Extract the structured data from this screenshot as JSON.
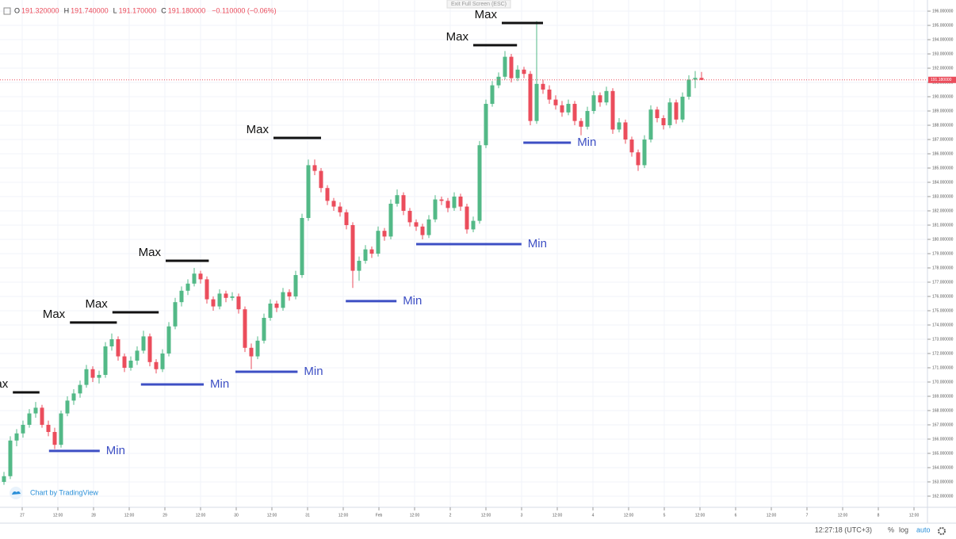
{
  "chart_data": {
    "type": "candlestick",
    "legend": [
      {
        "key": "O",
        "value": "191.320000"
      },
      {
        "key": "H",
        "value": "191.740000"
      },
      {
        "key": "L",
        "value": "191.170000"
      },
      {
        "key": "C",
        "value": "191.180000"
      }
    ],
    "change": "−0.110000 (−0.06%)",
    "up_color": "#53b987",
    "down_color": "#eb4d5c",
    "candles": [
      [
        163.0,
        163.7,
        162.8,
        163.4
      ],
      [
        163.4,
        166.2,
        163.2,
        165.9
      ],
      [
        165.9,
        166.7,
        165.5,
        166.4
      ],
      [
        166.4,
        167.3,
        166.1,
        167.0
      ],
      [
        167.0,
        168.1,
        166.8,
        167.8
      ],
      [
        167.8,
        168.6,
        167.5,
        168.2
      ],
      [
        168.2,
        168.4,
        166.8,
        167.0
      ],
      [
        167.0,
        167.3,
        166.2,
        166.5
      ],
      [
        166.5,
        166.8,
        165.3,
        165.6
      ],
      [
        165.6,
        168.0,
        165.4,
        167.8
      ],
      [
        167.8,
        169.0,
        167.6,
        168.7
      ],
      [
        168.7,
        169.5,
        168.4,
        169.2
      ],
      [
        169.2,
        170.1,
        168.9,
        169.8
      ],
      [
        169.8,
        171.2,
        169.6,
        170.9
      ],
      [
        170.9,
        171.1,
        170.0,
        170.3
      ],
      [
        170.3,
        170.8,
        169.9,
        170.5
      ],
      [
        170.5,
        172.8,
        170.3,
        172.5
      ],
      [
        172.5,
        173.4,
        172.2,
        173.0
      ],
      [
        173.0,
        173.2,
        171.5,
        171.8
      ],
      [
        171.8,
        172.0,
        170.7,
        171.0
      ],
      [
        171.0,
        171.8,
        170.8,
        171.5
      ],
      [
        171.5,
        172.5,
        171.2,
        172.2
      ],
      [
        172.2,
        173.6,
        172.0,
        173.2
      ],
      [
        173.2,
        173.4,
        171.1,
        171.4
      ],
      [
        171.4,
        171.6,
        170.6,
        170.9
      ],
      [
        170.9,
        172.3,
        170.7,
        172.0
      ],
      [
        172.0,
        174.2,
        171.8,
        173.9
      ],
      [
        173.9,
        175.9,
        173.7,
        175.6
      ],
      [
        175.6,
        176.7,
        175.3,
        176.4
      ],
      [
        176.4,
        177.2,
        176.1,
        176.9
      ],
      [
        176.9,
        178.0,
        176.7,
        177.6
      ],
      [
        177.6,
        177.8,
        176.9,
        177.2
      ],
      [
        177.2,
        177.4,
        175.5,
        175.8
      ],
      [
        175.8,
        176.0,
        175.0,
        175.3
      ],
      [
        175.3,
        176.5,
        175.1,
        176.2
      ],
      [
        176.2,
        176.4,
        175.6,
        175.9
      ],
      [
        175.9,
        176.3,
        175.7,
        176.0
      ],
      [
        176.0,
        176.2,
        174.8,
        175.1
      ],
      [
        175.1,
        175.3,
        172.1,
        172.4
      ],
      [
        172.4,
        172.7,
        170.9,
        171.8
      ],
      [
        171.8,
        173.2,
        171.6,
        172.9
      ],
      [
        172.9,
        174.8,
        172.7,
        174.5
      ],
      [
        174.5,
        175.8,
        174.3,
        175.5
      ],
      [
        175.5,
        175.7,
        174.9,
        175.2
      ],
      [
        175.2,
        176.6,
        175.0,
        176.3
      ],
      [
        176.3,
        176.5,
        175.7,
        176.0
      ],
      [
        176.0,
        177.8,
        175.8,
        177.5
      ],
      [
        177.5,
        181.8,
        177.3,
        181.5
      ],
      [
        181.5,
        185.6,
        181.3,
        185.2
      ],
      [
        185.2,
        185.6,
        184.5,
        184.8
      ],
      [
        184.8,
        185.0,
        183.3,
        183.6
      ],
      [
        183.6,
        183.8,
        182.4,
        182.7
      ],
      [
        182.7,
        182.9,
        182.0,
        182.3
      ],
      [
        182.3,
        182.6,
        181.6,
        181.9
      ],
      [
        181.9,
        182.1,
        180.7,
        181.0
      ],
      [
        181.0,
        181.2,
        176.6,
        177.8
      ],
      [
        177.8,
        178.8,
        177.1,
        178.5
      ],
      [
        178.5,
        179.6,
        178.3,
        179.3
      ],
      [
        179.3,
        179.5,
        178.7,
        179.0
      ],
      [
        179.0,
        180.9,
        178.8,
        180.6
      ],
      [
        180.6,
        180.8,
        179.9,
        180.2
      ],
      [
        180.2,
        182.8,
        180.0,
        182.5
      ],
      [
        182.5,
        183.5,
        182.3,
        183.1
      ],
      [
        183.1,
        183.3,
        181.7,
        182.0
      ],
      [
        182.0,
        182.2,
        180.9,
        181.2
      ],
      [
        181.2,
        181.4,
        180.6,
        180.9
      ],
      [
        180.9,
        181.1,
        180.0,
        180.3
      ],
      [
        180.3,
        181.7,
        180.1,
        181.4
      ],
      [
        181.4,
        183.1,
        181.2,
        182.8
      ],
      [
        182.8,
        183.0,
        182.4,
        182.7
      ],
      [
        182.7,
        182.9,
        181.9,
        182.2
      ],
      [
        182.2,
        183.3,
        182.0,
        183.0
      ],
      [
        183.0,
        183.2,
        182.0,
        182.3
      ],
      [
        182.3,
        182.5,
        180.4,
        180.7
      ],
      [
        180.7,
        181.6,
        180.5,
        181.3
      ],
      [
        181.3,
        186.9,
        181.1,
        186.6
      ],
      [
        186.6,
        189.8,
        186.4,
        189.5
      ],
      [
        189.5,
        191.1,
        189.3,
        190.8
      ],
      [
        190.8,
        191.7,
        190.6,
        191.4
      ],
      [
        191.4,
        193.2,
        191.2,
        192.8
      ],
      [
        192.8,
        193.0,
        191.0,
        191.3
      ],
      [
        191.3,
        192.2,
        191.1,
        191.9
      ],
      [
        191.9,
        192.1,
        191.3,
        191.6
      ],
      [
        191.6,
        191.8,
        188.0,
        188.3
      ],
      [
        188.3,
        195.3,
        188.1,
        190.9
      ],
      [
        190.9,
        191.2,
        190.2,
        190.5
      ],
      [
        190.5,
        190.8,
        189.5,
        189.8
      ],
      [
        189.8,
        190.1,
        189.1,
        189.4
      ],
      [
        189.4,
        189.7,
        188.6,
        188.9
      ],
      [
        188.9,
        189.8,
        188.7,
        189.5
      ],
      [
        189.5,
        189.7,
        188.0,
        188.3
      ],
      [
        188.3,
        188.5,
        187.3,
        187.9
      ],
      [
        187.9,
        189.3,
        187.7,
        189.0
      ],
      [
        189.0,
        190.4,
        188.8,
        190.1
      ],
      [
        190.1,
        190.3,
        189.3,
        189.6
      ],
      [
        189.6,
        190.7,
        189.4,
        190.4
      ],
      [
        190.4,
        190.6,
        187.4,
        187.7
      ],
      [
        187.7,
        188.5,
        187.5,
        188.2
      ],
      [
        188.2,
        188.4,
        186.7,
        187.0
      ],
      [
        187.0,
        187.2,
        185.8,
        186.1
      ],
      [
        186.1,
        186.3,
        184.8,
        185.2
      ],
      [
        185.2,
        187.3,
        185.0,
        187.0
      ],
      [
        187.0,
        189.4,
        186.8,
        189.1
      ],
      [
        189.1,
        189.3,
        188.2,
        188.5
      ],
      [
        188.5,
        188.7,
        187.7,
        188.0
      ],
      [
        188.0,
        189.9,
        187.8,
        189.6
      ],
      [
        189.6,
        189.8,
        188.1,
        188.4
      ],
      [
        188.4,
        190.3,
        188.2,
        190.0
      ],
      [
        190.0,
        191.5,
        189.8,
        191.2
      ],
      [
        191.2,
        191.8,
        190.6,
        191.32
      ],
      [
        191.32,
        191.74,
        191.17,
        191.18
      ]
    ],
    "xlim": [
      -0.625,
      145.625
    ],
    "xticks": [
      {
        "value": 2.875,
        "label": "27"
      },
      {
        "value": 8.5,
        "label": "12:00"
      },
      {
        "value": 14.125,
        "label": "28"
      },
      {
        "value": 19.75,
        "label": "12:00"
      },
      {
        "value": 25.375,
        "label": "29"
      },
      {
        "value": 31,
        "label": "12:00"
      },
      {
        "value": 36.625,
        "label": "30"
      },
      {
        "value": 42.25,
        "label": "12:00"
      },
      {
        "value": 47.875,
        "label": "31"
      },
      {
        "value": 53.5,
        "label": "12:00"
      },
      {
        "value": 59.125,
        "label": "Feb"
      },
      {
        "value": 64.75,
        "label": "12:00"
      },
      {
        "value": 70.375,
        "label": "2"
      },
      {
        "value": 76,
        "label": "12:00"
      },
      {
        "value": 81.625,
        "label": "3"
      },
      {
        "value": 87.25,
        "label": "12:00"
      },
      {
        "value": 92.875,
        "label": "4"
      },
      {
        "value": 98.5,
        "label": "12:00"
      },
      {
        "value": 104.125,
        "label": "5"
      },
      {
        "value": 109.75,
        "label": "12:00"
      },
      {
        "value": 115.375,
        "label": "6"
      },
      {
        "value": 121,
        "label": "12:00"
      },
      {
        "value": 126.625,
        "label": "7"
      },
      {
        "value": 132.25,
        "label": "12:00"
      },
      {
        "value": 137.875,
        "label": "8"
      },
      {
        "value": 143.5,
        "label": "12:00"
      }
    ],
    "ylim": [
      161.22,
      196.78
    ],
    "yticks": [
      {
        "value": 162,
        "label": "162.000000"
      },
      {
        "value": 163,
        "label": "163.000000"
      },
      {
        "value": 164,
        "label": "164.000000"
      },
      {
        "value": 165,
        "label": "165.000000"
      },
      {
        "value": 166,
        "label": "166.000000"
      },
      {
        "value": 167,
        "label": "167.000000"
      },
      {
        "value": 168,
        "label": "168.000000"
      },
      {
        "value": 169,
        "label": "169.000000"
      },
      {
        "value": 170,
        "label": "170.000000"
      },
      {
        "value": 171,
        "label": "171.000000"
      },
      {
        "value": 172,
        "label": "172.000000"
      },
      {
        "value": 173,
        "label": "173.000000"
      },
      {
        "value": 174,
        "label": "174.000000"
      },
      {
        "value": 175,
        "label": "175.000000"
      },
      {
        "value": 176,
        "label": "176.000000"
      },
      {
        "value": 177,
        "label": "177.000000"
      },
      {
        "value": 178,
        "label": "178.000000"
      },
      {
        "value": 179,
        "label": "179.000000"
      },
      {
        "value": 180,
        "label": "180.000000"
      },
      {
        "value": 181,
        "label": "181.000000"
      },
      {
        "value": 182,
        "label": "182.000000"
      },
      {
        "value": 183,
        "label": "183.000000"
      },
      {
        "value": 184,
        "label": "184.000000"
      },
      {
        "value": 185,
        "label": "185.000000"
      },
      {
        "value": 186,
        "label": "186.000000"
      },
      {
        "value": 187,
        "label": "187.000000"
      },
      {
        "value": 188,
        "label": "188.000000"
      },
      {
        "value": 189,
        "label": "189.000000"
      },
      {
        "value": 190,
        "label": "190.000000"
      },
      {
        "value": 191,
        "label": "191.000000"
      },
      {
        "value": 192,
        "label": "192.000000"
      },
      {
        "value": 193,
        "label": "193.000000"
      },
      {
        "value": 194,
        "label": "194.000000"
      },
      {
        "value": 195,
        "label": "195.000000"
      },
      {
        "value": 196,
        "label": "196.000000"
      }
    ],
    "grid": true,
    "last_price": {
      "value": 191.18,
      "label": "191.180000"
    },
    "annotations": [
      {
        "label": "Max",
        "price": 169.28,
        "start": 1.4,
        "end": 5.6,
        "color": "#111111"
      },
      {
        "label": "Max",
        "price": 174.17,
        "start": 10.4,
        "end": 17.8,
        "color": "#111111"
      },
      {
        "label": "Max",
        "price": 174.89,
        "start": 17.1,
        "end": 24.4,
        "color": "#111111"
      },
      {
        "label": "Max",
        "price": 178.5,
        "start": 25.5,
        "end": 32.3,
        "color": "#111111"
      },
      {
        "label": "Max",
        "price": 187.11,
        "start": 42.5,
        "end": 50,
        "color": "#111111"
      },
      {
        "label": "Max",
        "price": 193.61,
        "start": 74,
        "end": 80.9,
        "color": "#111111"
      },
      {
        "label": "Max",
        "price": 195.17,
        "start": 78.5,
        "end": 85,
        "color": "#111111"
      },
      {
        "label": "Min",
        "price": 165.17,
        "start": 7.1,
        "end": 15.1,
        "color": "#3d4fc4"
      },
      {
        "label": "Min",
        "price": 169.83,
        "start": 21.6,
        "end": 31.5,
        "color": "#3d4fc4"
      },
      {
        "label": "Min",
        "price": 170.72,
        "start": 36.5,
        "end": 46.3,
        "color": "#3d4fc4"
      },
      {
        "label": "Min",
        "price": 175.67,
        "start": 53.9,
        "end": 61.9,
        "color": "#3d4fc4"
      },
      {
        "label": "Min",
        "price": 179.67,
        "start": 65,
        "end": 81.6,
        "color": "#3d4fc4"
      },
      {
        "label": "Min",
        "price": 186.78,
        "start": 81.9,
        "end": 89.4,
        "color": "#3d4fc4"
      }
    ]
  },
  "ui": {
    "exit_fullscreen": "Exit Full Screen (ESC)",
    "branding": "Chart by TradingView",
    "clock": "12:27:18 (UTC+3)",
    "percent": "%",
    "log": "log",
    "auto": "auto"
  }
}
